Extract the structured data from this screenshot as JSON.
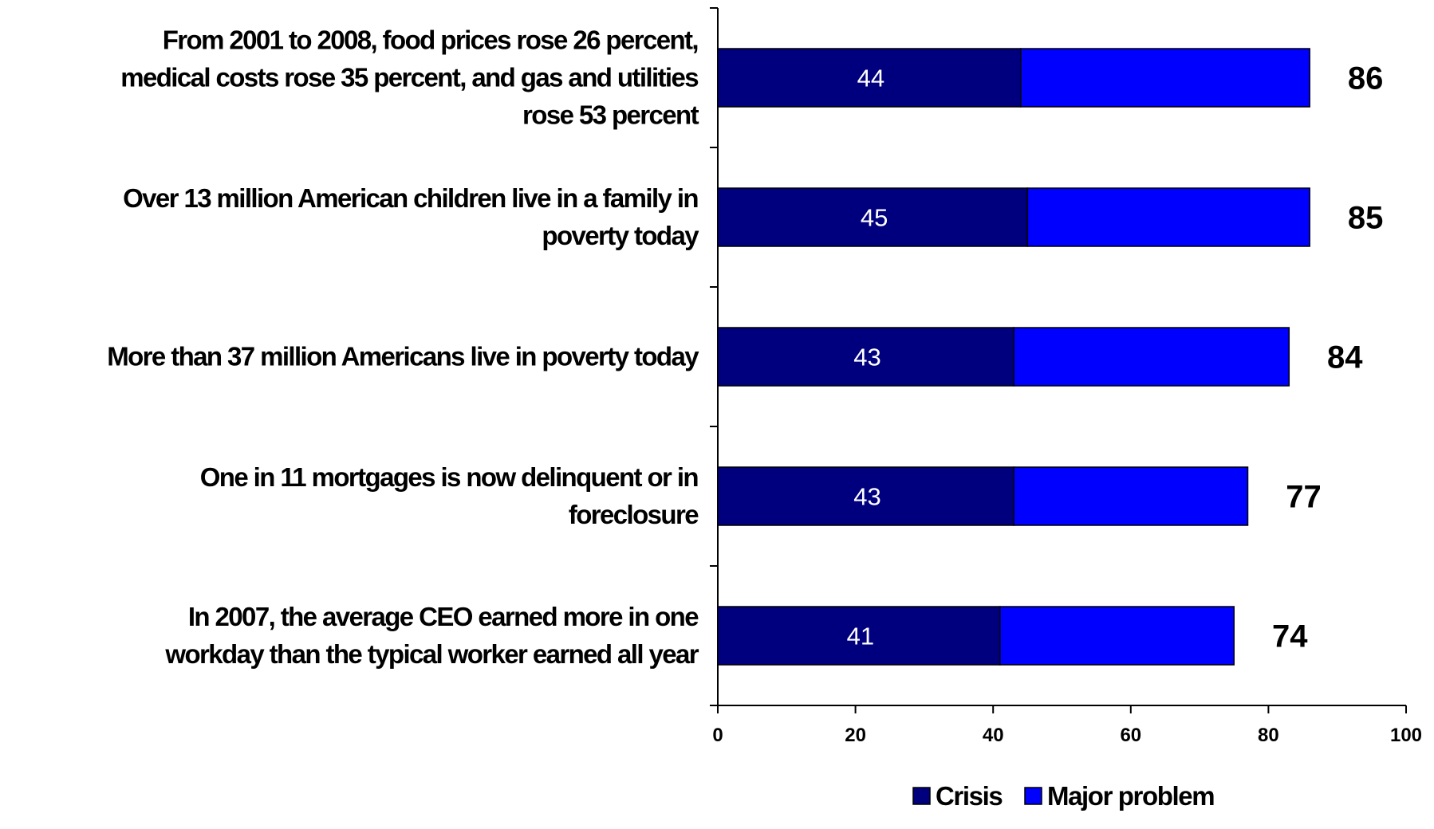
{
  "chart_data": {
    "type": "bar",
    "orientation": "horizontal",
    "stacked": true,
    "categories": [
      [
        "From 2001 to 2008, food prices rose 26 percent,",
        "medical costs rose 35 percent, and gas and utilities",
        "rose 53 percent"
      ],
      [
        "Over 13 million American children live in a family in",
        "poverty today"
      ],
      [
        "More than 37 million Americans live in poverty today"
      ],
      [
        "One in 11 mortgages is now delinquent or in",
        "foreclosure"
      ],
      [
        "In 2007, the average CEO earned more in one",
        "workday than the typical worker earned all year"
      ]
    ],
    "series": [
      {
        "name": "Crisis",
        "color": "#00007f",
        "values": [
          44,
          45,
          43,
          43,
          41
        ]
      },
      {
        "name": "Major problem",
        "color": "#0000ff",
        "values": [
          42,
          41,
          40,
          34,
          34
        ]
      }
    ],
    "totals": [
      86,
      85,
      84,
      77,
      74
    ],
    "xlim": [
      0,
      100
    ],
    "xticks": [
      "0",
      "20",
      "40",
      "60",
      "80",
      "100"
    ],
    "grid": false,
    "legend_position": "bottom-right"
  }
}
